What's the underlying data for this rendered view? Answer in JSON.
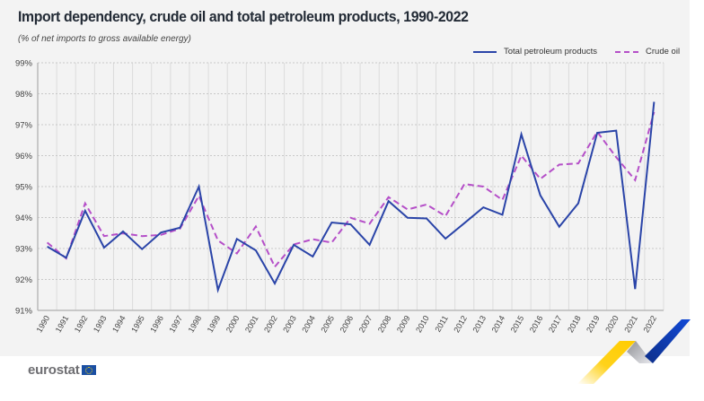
{
  "header": {
    "title": "Import dependency, crude oil and total petroleum products, 1990-2022",
    "subtitle": "(% of net imports to gross available energy)"
  },
  "legend": {
    "items": [
      {
        "label": "Total petroleum products",
        "style": "solid",
        "color": "#2a44a8"
      },
      {
        "label": "Crude oil",
        "style": "dashed",
        "color": "#b54fc8"
      }
    ]
  },
  "footer": {
    "logo_text": "eurostat"
  },
  "chart_data": {
    "type": "line",
    "title": "Import dependency, crude oil and total petroleum products, 1990-2022",
    "subtitle": "(% of net imports to gross available energy)",
    "xlabel": "",
    "ylabel": "",
    "ylim": [
      91,
      99
    ],
    "yticks": [
      "91%",
      "92%",
      "93%",
      "94%",
      "95%",
      "96%",
      "97%",
      "98%",
      "99%"
    ],
    "ytick_values": [
      91,
      92,
      93,
      94,
      95,
      96,
      97,
      98,
      99
    ],
    "grid": true,
    "legend_position": "top-right",
    "x": [
      "1990",
      "1991",
      "1992",
      "1993",
      "1994",
      "1995",
      "1996",
      "1997",
      "1998",
      "1999",
      "2000",
      "2001",
      "2002",
      "2003",
      "2004",
      "2005",
      "2006",
      "2007",
      "2008",
      "2009",
      "2010",
      "2011",
      "2012",
      "2013",
      "2014",
      "2015",
      "2016",
      "2017",
      "2018",
      "2019",
      "2020",
      "2021",
      "2022"
    ],
    "series": [
      {
        "name": "Total petroleum products",
        "color": "#2a44a8",
        "style": "solid",
        "values": [
          93.06,
          92.7,
          94.22,
          93.03,
          93.55,
          92.98,
          93.52,
          93.67,
          95.0,
          91.66,
          93.31,
          92.94,
          91.87,
          93.12,
          92.74,
          93.84,
          93.78,
          93.12,
          94.53,
          93.99,
          93.97,
          93.32,
          93.82,
          94.33,
          94.09,
          96.69,
          94.72,
          93.7,
          94.46,
          96.74,
          96.81,
          91.69,
          97.74
        ]
      },
      {
        "name": "Crude oil",
        "color": "#b54fc8",
        "style": "dashed",
        "values": [
          93.19,
          92.68,
          94.46,
          93.4,
          93.49,
          93.4,
          93.44,
          93.64,
          94.7,
          93.26,
          92.84,
          93.71,
          92.41,
          93.13,
          93.3,
          93.19,
          93.99,
          93.8,
          94.66,
          94.26,
          94.42,
          94.05,
          95.08,
          95.0,
          94.57,
          96.0,
          95.25,
          95.71,
          95.75,
          96.77,
          95.95,
          95.21,
          97.41
        ]
      }
    ]
  }
}
